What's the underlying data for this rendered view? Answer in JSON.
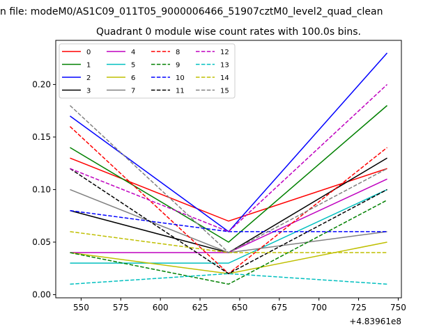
{
  "chart_data": {
    "type": "line",
    "suptitle": "n file: modeM0/AS1C09_011T05_9000006466_51907cztM0_level2_quad_clean",
    "title": "Quadrant 0 module wise count rates with 100.0s bins.",
    "xlabel": "",
    "ylabel": "",
    "x_offset_label": "+4.83961e8",
    "x": [
      543,
      643,
      743
    ],
    "xlim": [
      534,
      752
    ],
    "ylim": [
      -0.003,
      0.242
    ],
    "x_ticks": [
      550,
      575,
      600,
      625,
      650,
      675,
      700,
      725,
      750
    ],
    "x_tick_labels": [
      "550",
      "575",
      "600",
      "625",
      "650",
      "675",
      "700",
      "725",
      "750"
    ],
    "y_ticks": [
      0.0,
      0.05,
      0.1,
      0.15,
      0.2
    ],
    "y_tick_labels": [
      "0.00",
      "0.05",
      "0.10",
      "0.15",
      "0.20"
    ],
    "grid": false,
    "legend_position": "top-left",
    "legend_columns": 4,
    "series": [
      {
        "name": "0",
        "values": [
          0.13,
          0.07,
          0.12
        ],
        "color": "#ff0000",
        "dash": "solid"
      },
      {
        "name": "1",
        "values": [
          0.14,
          0.05,
          0.18
        ],
        "color": "#008000",
        "dash": "solid"
      },
      {
        "name": "2",
        "values": [
          0.17,
          0.06,
          0.23
        ],
        "color": "#0000ff",
        "dash": "solid"
      },
      {
        "name": "3",
        "values": [
          0.08,
          0.04,
          0.13
        ],
        "color": "#000000",
        "dash": "solid"
      },
      {
        "name": "4",
        "values": [
          0.04,
          0.04,
          0.11
        ],
        "color": "#bf00bf",
        "dash": "solid"
      },
      {
        "name": "5",
        "values": [
          0.03,
          0.03,
          0.1
        ],
        "color": "#00bfbf",
        "dash": "solid"
      },
      {
        "name": "6",
        "values": [
          0.04,
          0.02,
          0.05
        ],
        "color": "#bfbf00",
        "dash": "solid"
      },
      {
        "name": "7",
        "values": [
          0.1,
          0.04,
          0.06
        ],
        "color": "#808080",
        "dash": "solid"
      },
      {
        "name": "8",
        "values": [
          0.16,
          0.02,
          0.14
        ],
        "color": "#ff0000",
        "dash": "dashed"
      },
      {
        "name": "9",
        "values": [
          0.04,
          0.01,
          0.09
        ],
        "color": "#008000",
        "dash": "dashed"
      },
      {
        "name": "10",
        "values": [
          0.08,
          0.06,
          0.06
        ],
        "color": "#0000ff",
        "dash": "dashed"
      },
      {
        "name": "11",
        "values": [
          0.12,
          0.02,
          0.1
        ],
        "color": "#000000",
        "dash": "dashed"
      },
      {
        "name": "12",
        "values": [
          0.12,
          0.06,
          0.2
        ],
        "color": "#bf00bf",
        "dash": "dashed"
      },
      {
        "name": "13",
        "values": [
          0.01,
          0.02,
          0.01
        ],
        "color": "#00bfbf",
        "dash": "dashed"
      },
      {
        "name": "14",
        "values": [
          0.06,
          0.04,
          0.04
        ],
        "color": "#bfbf00",
        "dash": "dashed"
      },
      {
        "name": "15",
        "values": [
          0.18,
          0.04,
          0.12
        ],
        "color": "#808080",
        "dash": "dashed"
      }
    ]
  }
}
